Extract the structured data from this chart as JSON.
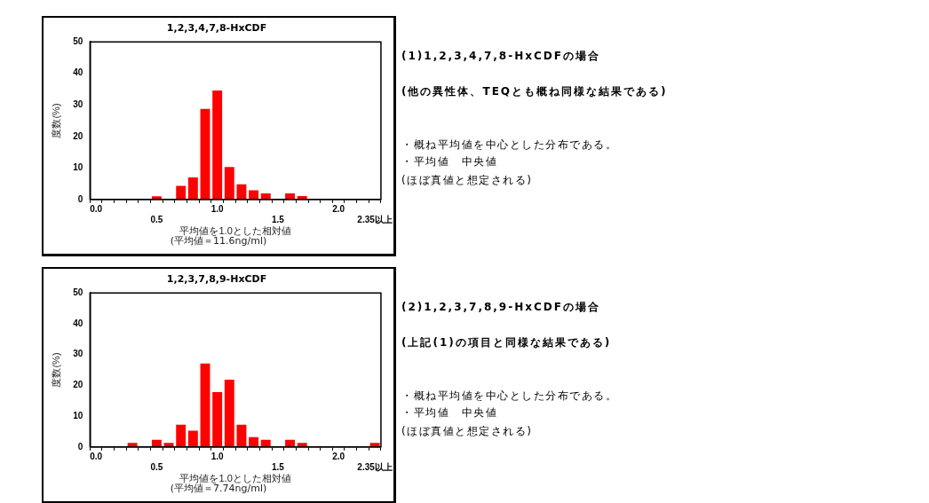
{
  "chart_data": [
    {
      "type": "bar",
      "title": "1,2,3,4,7,8-HxCDF",
      "xlabel": "平均値を1.0とした相対値",
      "ylabel": "度数(%)",
      "categories": [
        "0.0",
        null,
        null,
        null,
        null,
        "0.5",
        null,
        null,
        null,
        null,
        "1.0",
        null,
        null,
        null,
        null,
        "1.5",
        null,
        null,
        null,
        null,
        "2.0",
        null,
        null,
        "2.35以上"
      ],
      "values": [
        0,
        0,
        0,
        0,
        0,
        1,
        0,
        4.3,
        7,
        28.7,
        34.6,
        10.3,
        4.8,
        2.9,
        1.9,
        0,
        1.9,
        1.1,
        0,
        0,
        0,
        0,
        0,
        0
      ],
      "color": "#ff0000",
      "ylim": [
        0,
        50
      ],
      "yticks": [
        0,
        10,
        20,
        30,
        40,
        50
      ],
      "grid": false,
      "annotations": [
        "(平均値＝11.6ng/ml)",
        "(1)1,2,3,4,7,8-HxCDFの場合",
        "(他の異性体、TEQとも概ね同様な結果である)",
        "・概ね平均値を中心とした分布である。",
        "・平均値　中央値",
        "(ほぼ真値と想定される)"
      ]
    },
    {
      "type": "bar",
      "title": "1,2,3,7,8,9-HxCDF",
      "xlabel": "平均値を1.0とした相対値",
      "ylabel": "度数(%)",
      "categories": [
        "0.0",
        null,
        null,
        null,
        null,
        "0.5",
        null,
        null,
        null,
        null,
        "1.0",
        null,
        null,
        null,
        null,
        "1.5",
        null,
        null,
        null,
        null,
        "2.0",
        null,
        null,
        "2.35以上"
      ],
      "values": [
        0,
        0,
        0,
        1.3,
        0,
        2.3,
        1.3,
        7.2,
        5.3,
        27.1,
        17.8,
        21.8,
        7.2,
        3.2,
        2.3,
        0,
        2.3,
        1.3,
        0,
        0,
        0,
        0,
        0,
        1.3
      ],
      "color": "#ff0000",
      "ylim": [
        0,
        50
      ],
      "yticks": [
        0,
        10,
        20,
        30,
        40,
        50
      ],
      "grid": false,
      "annotations": [
        "(平均値＝7.74ng/ml)",
        "(2)1,2,3,7,8,9-HxCDFの場合",
        "(上記(1)の項目と同様な結果である)",
        "・概ね平均値を中心とした分布である。",
        "・平均値　中央値",
        "(ほぼ真値と想定される)"
      ]
    }
  ]
}
